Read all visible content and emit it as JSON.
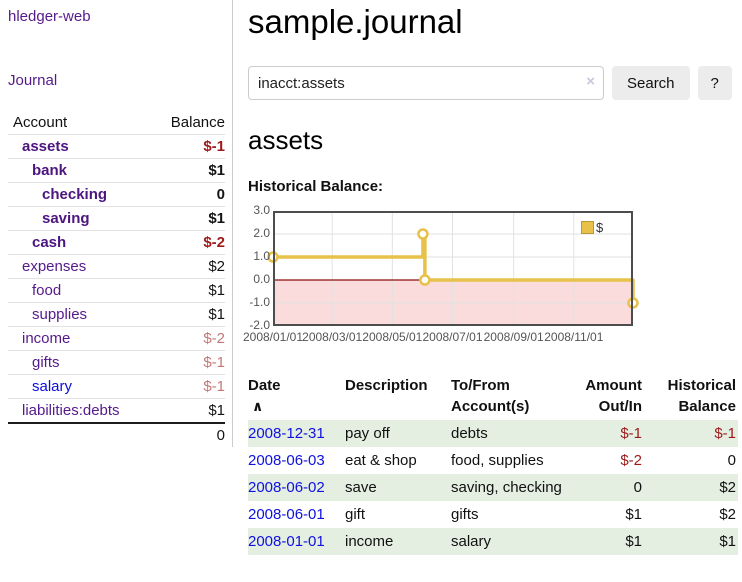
{
  "colors": {
    "link_purple": "#551a8b",
    "link_blue": "#0d0dde",
    "negative_strong": "#9e1a1a",
    "negative_soft": "#c47878",
    "row_green": "#e4efe2",
    "chart_gold": "#e8c14a",
    "chart_negative_bg": "#fadcdc",
    "chart_zero_line": "#8f0e0e"
  },
  "sidebar": {
    "app_title": "hledger-web",
    "journal_label": "Journal",
    "accounts_table": {
      "headers": {
        "account": "Account",
        "balance": "Balance"
      },
      "rows": [
        {
          "name": "assets",
          "balance": "$-1",
          "indent": 1,
          "bold": true,
          "tone": "neg-strong"
        },
        {
          "name": "bank",
          "balance": "$1",
          "indent": 2,
          "bold": true,
          "tone": ""
        },
        {
          "name": "checking",
          "balance": "0",
          "indent": 3,
          "bold": true,
          "tone": ""
        },
        {
          "name": "saving",
          "balance": "$1",
          "indent": 3,
          "bold": true,
          "tone": ""
        },
        {
          "name": "cash",
          "balance": "$-2",
          "indent": 2,
          "bold": true,
          "tone": "neg-strong"
        },
        {
          "name": "expenses",
          "balance": "$2",
          "indent": 1,
          "bold": false,
          "tone": ""
        },
        {
          "name": "food",
          "balance": "$1",
          "indent": 2,
          "bold": false,
          "tone": ""
        },
        {
          "name": "supplies",
          "balance": "$1",
          "indent": 2,
          "bold": false,
          "tone": ""
        },
        {
          "name": "income",
          "balance": "$-2",
          "indent": 1,
          "bold": false,
          "tone": "neg-soft"
        },
        {
          "name": "gifts",
          "balance": "$-1",
          "indent": 2,
          "bold": false,
          "tone": "neg-soft"
        },
        {
          "name": "salary",
          "balance": "$-1",
          "indent": 2,
          "bold": false,
          "tone": "neg-soft",
          "link_color": "blue"
        },
        {
          "name": "liabilities:debts",
          "balance": "$1",
          "indent": 1,
          "bold": false,
          "tone": ""
        }
      ],
      "total": "0"
    }
  },
  "main": {
    "title": "sample.journal",
    "search": {
      "value": "inacct:assets",
      "clear_icon": "×",
      "button_label": "Search",
      "help_label": "?"
    },
    "account_heading": "assets",
    "chart_title": "Historical Balance:"
  },
  "chart_data": {
    "type": "line",
    "step": true,
    "title": "Historical Balance:",
    "x_range": [
      "2008/01/01",
      "2008/12/31"
    ],
    "ylim": [
      -2,
      3
    ],
    "yticks": [
      "3.0",
      "2.0",
      "1.0",
      "0.0",
      "-1.0",
      "-2.0"
    ],
    "xticks": [
      "2008/01/01",
      "2008/03/01",
      "2008/05/01",
      "2008/07/01",
      "2008/09/01",
      "2008/11/01"
    ],
    "series": [
      {
        "name": "$",
        "color": "#e8c14a",
        "points": [
          {
            "x": "2008/01/01",
            "y": 1
          },
          {
            "x": "2008/06/01",
            "y": 2
          },
          {
            "x": "2008/06/03",
            "y": 0
          },
          {
            "x": "2008/12/31",
            "y": -1
          }
        ]
      }
    ],
    "legend": {
      "label": "$",
      "position": "top-right"
    },
    "negative_region_shaded": true,
    "grid": true
  },
  "transactions": {
    "headers": {
      "date": "Date",
      "sort_icon": "∧",
      "description": "Description",
      "accounts_l1": "To/From",
      "accounts_l2": "Account(s)",
      "amount_l1": "Amount",
      "amount_l2": "Out/In",
      "balance_l1": "Historical",
      "balance_l2": "Balance"
    },
    "rows": [
      {
        "date": "2008-12-31",
        "description": "pay off",
        "accounts": "debts",
        "amount": "$-1",
        "balance": "$-1",
        "amount_neg": true,
        "balance_neg": true
      },
      {
        "date": "2008-06-03",
        "description": "eat & shop",
        "accounts": "food, supplies",
        "amount": "$-2",
        "balance": "0",
        "amount_neg": true,
        "balance_neg": false
      },
      {
        "date": "2008-06-02",
        "description": "save",
        "accounts": "saving, checking",
        "amount": "0",
        "balance": "$2",
        "amount_neg": false,
        "balance_neg": false
      },
      {
        "date": "2008-06-01",
        "description": "gift",
        "accounts": "gifts",
        "amount": "$1",
        "balance": "$2",
        "amount_neg": false,
        "balance_neg": false
      },
      {
        "date": "2008-01-01",
        "description": "income",
        "accounts": "salary",
        "amount": "$1",
        "balance": "$1",
        "amount_neg": false,
        "balance_neg": false
      }
    ]
  }
}
